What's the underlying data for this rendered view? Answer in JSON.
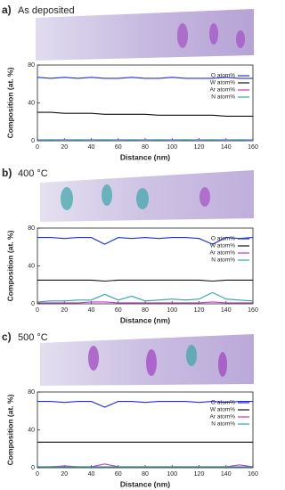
{
  "chart_data": [
    {
      "type": "line",
      "panel": "a)",
      "title": "As deposited",
      "xlabel": "Distance (nm)",
      "ylabel": "Composition (at. %)",
      "xlim": [
        0,
        160
      ],
      "xticks": [
        0,
        20,
        40,
        60,
        80,
        100,
        120,
        140,
        160
      ],
      "ylim": [
        0,
        80
      ],
      "yticks": [
        0,
        40,
        80
      ],
      "legend": "right",
      "x": [
        0,
        10,
        20,
        30,
        40,
        50,
        60,
        70,
        80,
        90,
        100,
        110,
        120,
        130,
        140,
        150,
        160
      ],
      "series": [
        {
          "name": "O atom%",
          "color": "#1f2de0",
          "values": [
            67,
            66,
            67,
            66,
            67,
            66,
            66,
            67,
            66,
            66,
            67,
            66,
            66,
            66,
            67,
            66,
            66
          ]
        },
        {
          "name": "W atom%",
          "color": "#111111",
          "values": [
            30,
            30,
            29,
            29,
            29,
            28,
            28,
            28,
            28,
            27,
            27,
            27,
            27,
            27,
            26,
            26,
            26
          ]
        },
        {
          "name": "Ar atom%",
          "color": "#cc33cc",
          "values": [
            1,
            1,
            1,
            1,
            1,
            1,
            1,
            1,
            1,
            1,
            1,
            1,
            1,
            1,
            1,
            1,
            1
          ]
        },
        {
          "name": "N atom%",
          "color": "#2aa6a6",
          "values": [
            0.5,
            1,
            0.5,
            1,
            0.5,
            1,
            0.5,
            1,
            0.5,
            1,
            0.5,
            1,
            0.5,
            1,
            0.5,
            1,
            0.5
          ]
        }
      ]
    },
    {
      "type": "line",
      "panel": "b)",
      "title": "400 °C",
      "xlabel": "Distance (nm)",
      "ylabel": "Composition (at. %)",
      "xlim": [
        0,
        160
      ],
      "xticks": [
        0,
        20,
        40,
        60,
        80,
        100,
        120,
        140,
        160
      ],
      "ylim": [
        0,
        80
      ],
      "yticks": [
        0,
        40,
        80
      ],
      "legend": "right",
      "x": [
        0,
        10,
        20,
        30,
        40,
        50,
        60,
        70,
        80,
        90,
        100,
        110,
        120,
        130,
        140,
        150,
        160
      ],
      "series": [
        {
          "name": "O atom%",
          "color": "#1f2de0",
          "values": [
            70,
            70,
            69,
            70,
            70,
            63,
            70,
            69,
            70,
            69,
            70,
            70,
            69,
            63,
            70,
            69,
            70
          ]
        },
        {
          "name": "W atom%",
          "color": "#111111",
          "values": [
            25,
            25,
            25,
            25,
            25,
            24,
            25,
            25,
            25,
            25,
            25,
            25,
            25,
            24,
            25,
            25,
            25
          ]
        },
        {
          "name": "Ar atom%",
          "color": "#cc33cc",
          "values": [
            1,
            1,
            1,
            1,
            2,
            2,
            1,
            1,
            1,
            1,
            1,
            1,
            1,
            2,
            1,
            1,
            1
          ]
        },
        {
          "name": "N atom%",
          "color": "#2aa6a6",
          "values": [
            2,
            3,
            3,
            4,
            4,
            10,
            4,
            8,
            3,
            4,
            5,
            4,
            5,
            12,
            5,
            4,
            3
          ]
        }
      ]
    },
    {
      "type": "line",
      "panel": "c)",
      "title": "500 °C",
      "xlabel": "Distance (nm)",
      "ylabel": "Composition (at. %)",
      "xlim": [
        0,
        160
      ],
      "xticks": [
        0,
        20,
        40,
        60,
        80,
        100,
        120,
        140,
        160
      ],
      "ylim": [
        0,
        80
      ],
      "yticks": [
        0,
        40,
        80
      ],
      "legend": "right",
      "x": [
        0,
        10,
        20,
        30,
        40,
        50,
        60,
        70,
        80,
        90,
        100,
        110,
        120,
        130,
        140,
        150,
        160
      ],
      "series": [
        {
          "name": "O atom%",
          "color": "#1f2de0",
          "values": [
            70,
            70,
            69,
            70,
            70,
            64,
            70,
            70,
            69,
            70,
            70,
            70,
            69,
            70,
            69,
            70,
            70
          ]
        },
        {
          "name": "W atom%",
          "color": "#111111",
          "values": [
            27,
            27,
            27,
            27,
            27,
            27,
            27,
            27,
            27,
            27,
            27,
            27,
            27,
            27,
            27,
            27,
            27
          ]
        },
        {
          "name": "Ar atom%",
          "color": "#cc33cc",
          "values": [
            1,
            1,
            2,
            1,
            1,
            4,
            1,
            1,
            1,
            1,
            1,
            1,
            1,
            1,
            1,
            3,
            1
          ]
        },
        {
          "name": "N atom%",
          "color": "#2aa6a6",
          "values": [
            1,
            1,
            1,
            1,
            1,
            1,
            1,
            1,
            1,
            1,
            1,
            1,
            1,
            1,
            1,
            1,
            1
          ]
        }
      ]
    }
  ]
}
